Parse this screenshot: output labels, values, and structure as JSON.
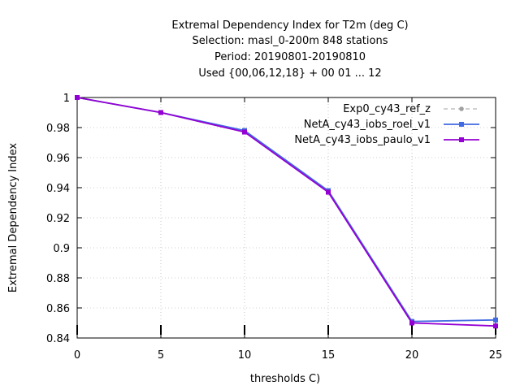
{
  "chart_data": {
    "type": "line",
    "title_lines": [
      "Extremal Dependency Index  for T2m (deg C)",
      "Selection: masl_0-200m    848 stations",
      "Period: 20190801-20190810",
      "Used {00,06,12,18} + 00 01 ... 12"
    ],
    "xlabel": "thresholds C)",
    "ylabel": "Extremal Dependency Index",
    "x": [
      0,
      5,
      10,
      15,
      20,
      25
    ],
    "xlim": [
      0,
      25
    ],
    "ylim": [
      0.84,
      1.0
    ],
    "x_ticks": [
      "0",
      "5",
      "10",
      "15",
      "20",
      "25"
    ],
    "y_ticks": [
      "0.84",
      "0.86",
      "0.88",
      "0.9",
      "0.92",
      "0.94",
      "0.96",
      "0.98",
      "1"
    ],
    "grid": true,
    "legend_position": "top-right",
    "series": [
      {
        "name": "Exp0_cy43_ref_z",
        "values": [
          1.0,
          0.99,
          0.978,
          0.938,
          0.851,
          0.852
        ],
        "color": "#a0a0a0",
        "dash": "dashed",
        "marker": "circle"
      },
      {
        "name": "NetA_cy43_iobs_roel_v1",
        "values": [
          1.0,
          0.99,
          0.978,
          0.938,
          0.851,
          0.852
        ],
        "color": "#4169e1",
        "dash": "solid",
        "marker": "square"
      },
      {
        "name": "NetA_cy43_iobs_paulo_v1",
        "values": [
          1.0,
          0.99,
          0.977,
          0.937,
          0.85,
          0.848
        ],
        "color": "#9400d3",
        "dash": "solid",
        "marker": "square"
      }
    ]
  }
}
